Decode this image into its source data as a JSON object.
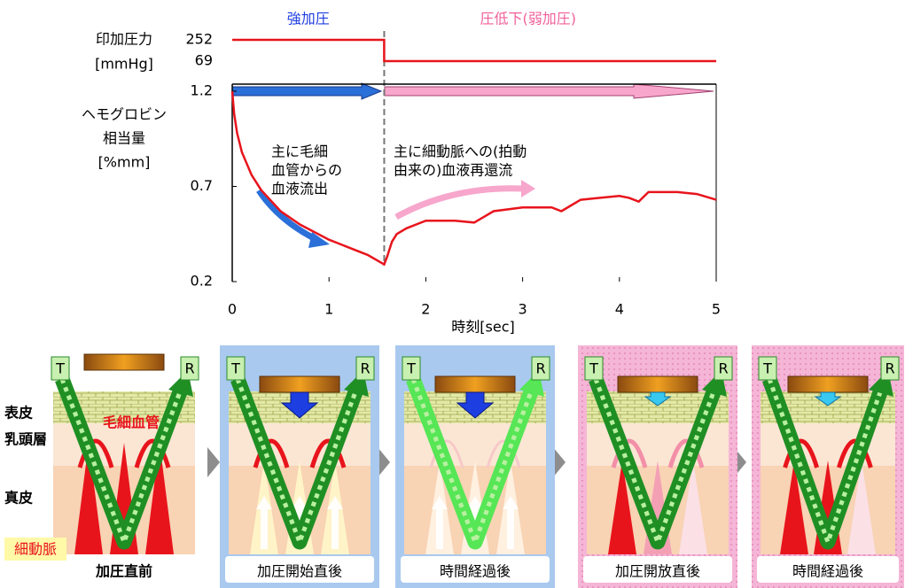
{
  "chart_data": [
    {
      "type": "line",
      "ylabel": [
        "印加圧力",
        "[mmHg]"
      ],
      "xlim": [
        0,
        5
      ],
      "ylim": [
        20,
        290
      ],
      "yticks": [
        252,
        69
      ],
      "x": [
        0,
        1.57,
        1.57,
        5
      ],
      "values": [
        252,
        252,
        69,
        69
      ],
      "color": "#e8141c",
      "phases": [
        "強加圧",
        "圧低下(弱加圧)"
      ],
      "phase_colors": [
        "#1f3de0",
        "#f0609a"
      ],
      "phase_boundary": 1.57
    },
    {
      "type": "line",
      "ylabel": [
        "ヘモグロビン",
        "相当量",
        "[%mm]"
      ],
      "xlabel": "時刻[sec]",
      "xlim": [
        0,
        5
      ],
      "xticks": [
        0,
        1,
        2,
        3,
        4,
        5
      ],
      "ylim": [
        0.2,
        1.2
      ],
      "yticks": [
        0.2,
        0.7,
        1.2
      ],
      "x": [
        0,
        0.02,
        0.05,
        0.1,
        0.2,
        0.3,
        0.5,
        0.7,
        1.0,
        1.2,
        1.4,
        1.57,
        1.6,
        1.65,
        1.7,
        1.8,
        2.0,
        2.3,
        2.5,
        2.6,
        2.7,
        3.0,
        3.3,
        3.4,
        3.5,
        3.6,
        3.8,
        4.0,
        4.1,
        4.2,
        4.3,
        4.4,
        4.6,
        4.8,
        5.0
      ],
      "values": [
        1.2,
        1.08,
        0.98,
        0.88,
        0.76,
        0.68,
        0.57,
        0.5,
        0.42,
        0.38,
        0.34,
        0.29,
        0.33,
        0.41,
        0.45,
        0.48,
        0.52,
        0.52,
        0.51,
        0.54,
        0.57,
        0.59,
        0.59,
        0.57,
        0.6,
        0.63,
        0.64,
        0.65,
        0.64,
        0.62,
        0.67,
        0.67,
        0.67,
        0.66,
        0.63
      ],
      "color": "#e8141c",
      "annotations": [
        [
          "主に毛細",
          "血管からの",
          "血液流出"
        ],
        [
          "主に細動脈への(拍動",
          "由来の)血液再還流"
        ]
      ]
    }
  ],
  "diagram": {
    "layers": [
      "表皮",
      "乳頭層",
      "真皮"
    ],
    "capillary_label": "毛細血管",
    "arteriole_label": "細動脈",
    "transmitter": "T",
    "receiver": "R",
    "panels": [
      {
        "caption": "加圧直前"
      },
      {
        "caption": "加圧開始直後"
      },
      {
        "caption": "時間経過後"
      },
      {
        "caption": "加圧開放直後"
      },
      {
        "caption": "時間経過後"
      }
    ]
  }
}
